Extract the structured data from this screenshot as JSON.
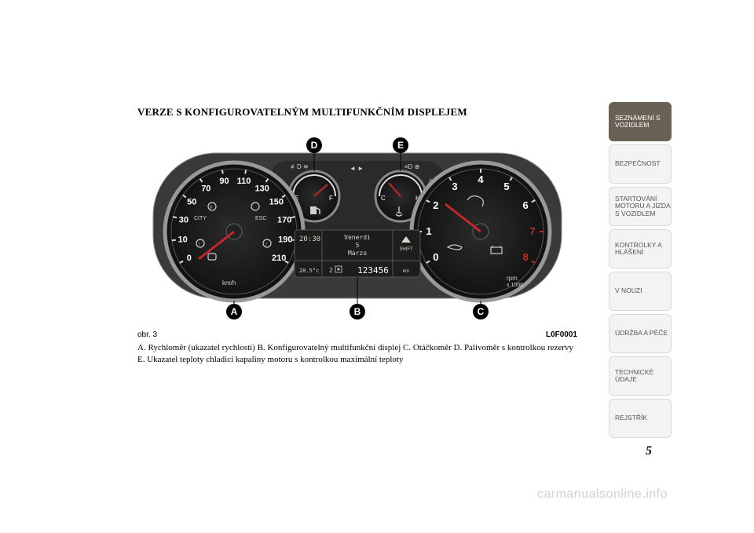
{
  "title": "VERZE S KONFIGUROVATELNÝM MULTIFUNKČNÍM DISPLEJEM",
  "figure": {
    "obr": "obr. 3",
    "code": "L0F0001",
    "caption": "A. Rychloměr (ukazatel rychlosti) B. Konfigurovatelný multifunkční displej C. Otáčkoměr D. Palivoměr s kontrolkou rezervy E. Ukazatel teploty chladicí kapaliny motoru s kontrolkou maximální teploty",
    "callouts": {
      "A": "A",
      "B": "B",
      "C": "C",
      "D": "D",
      "E": "E"
    },
    "speedo": {
      "ticks": [
        "0",
        "10",
        "30",
        "50",
        "70",
        "90",
        "110",
        "130",
        "150",
        "170",
        "190",
        "210"
      ],
      "unit": "km/h",
      "labels": {
        "city": "CITY",
        "esc": "ESC"
      }
    },
    "tach": {
      "ticks": [
        "0",
        "1",
        "2",
        "3",
        "4",
        "5",
        "6",
        "7",
        "8"
      ],
      "unit_top": "rpm",
      "unit_bot": "x 1000"
    },
    "fuel": {
      "E": "E",
      "F": "F"
    },
    "temp": {
      "C": "C",
      "H": "H"
    },
    "display": {
      "time": "20:30",
      "line1": "Venerdi",
      "line2": "5",
      "line3": "Marzo",
      "shift": "SHIFT",
      "temp": "20.5°c",
      "gear": "2",
      "odo": "123456",
      "odo_unit": "km"
    },
    "colors": {
      "cluster_bg": "#3a3a3a",
      "cluster_dark": "#0f0f0f",
      "dial_face": "#1a1a1a",
      "lcd": "#2b2b2b",
      "tick": "#dcdcdc",
      "red": "#c62828",
      "callout_bg": "#000000",
      "callout_fg": "#ffffff",
      "callout_stroke": "#000000"
    }
  },
  "tabs": [
    "SEZNÁMENÍ S VOZIDLEM",
    "BEZPEČNOST",
    "STARTOVÁNÍ MOTORU A JÍZDA S VOZIDLEM",
    "KONTROLKY A HLÁŠENÍ",
    "V NOUZI",
    "ÚDRŽBA A PÉČE",
    "TECHNICKÉ ÚDAJE",
    "REJSTŘÍK"
  ],
  "page_number": "5",
  "watermark": "carmanualsonline.info"
}
